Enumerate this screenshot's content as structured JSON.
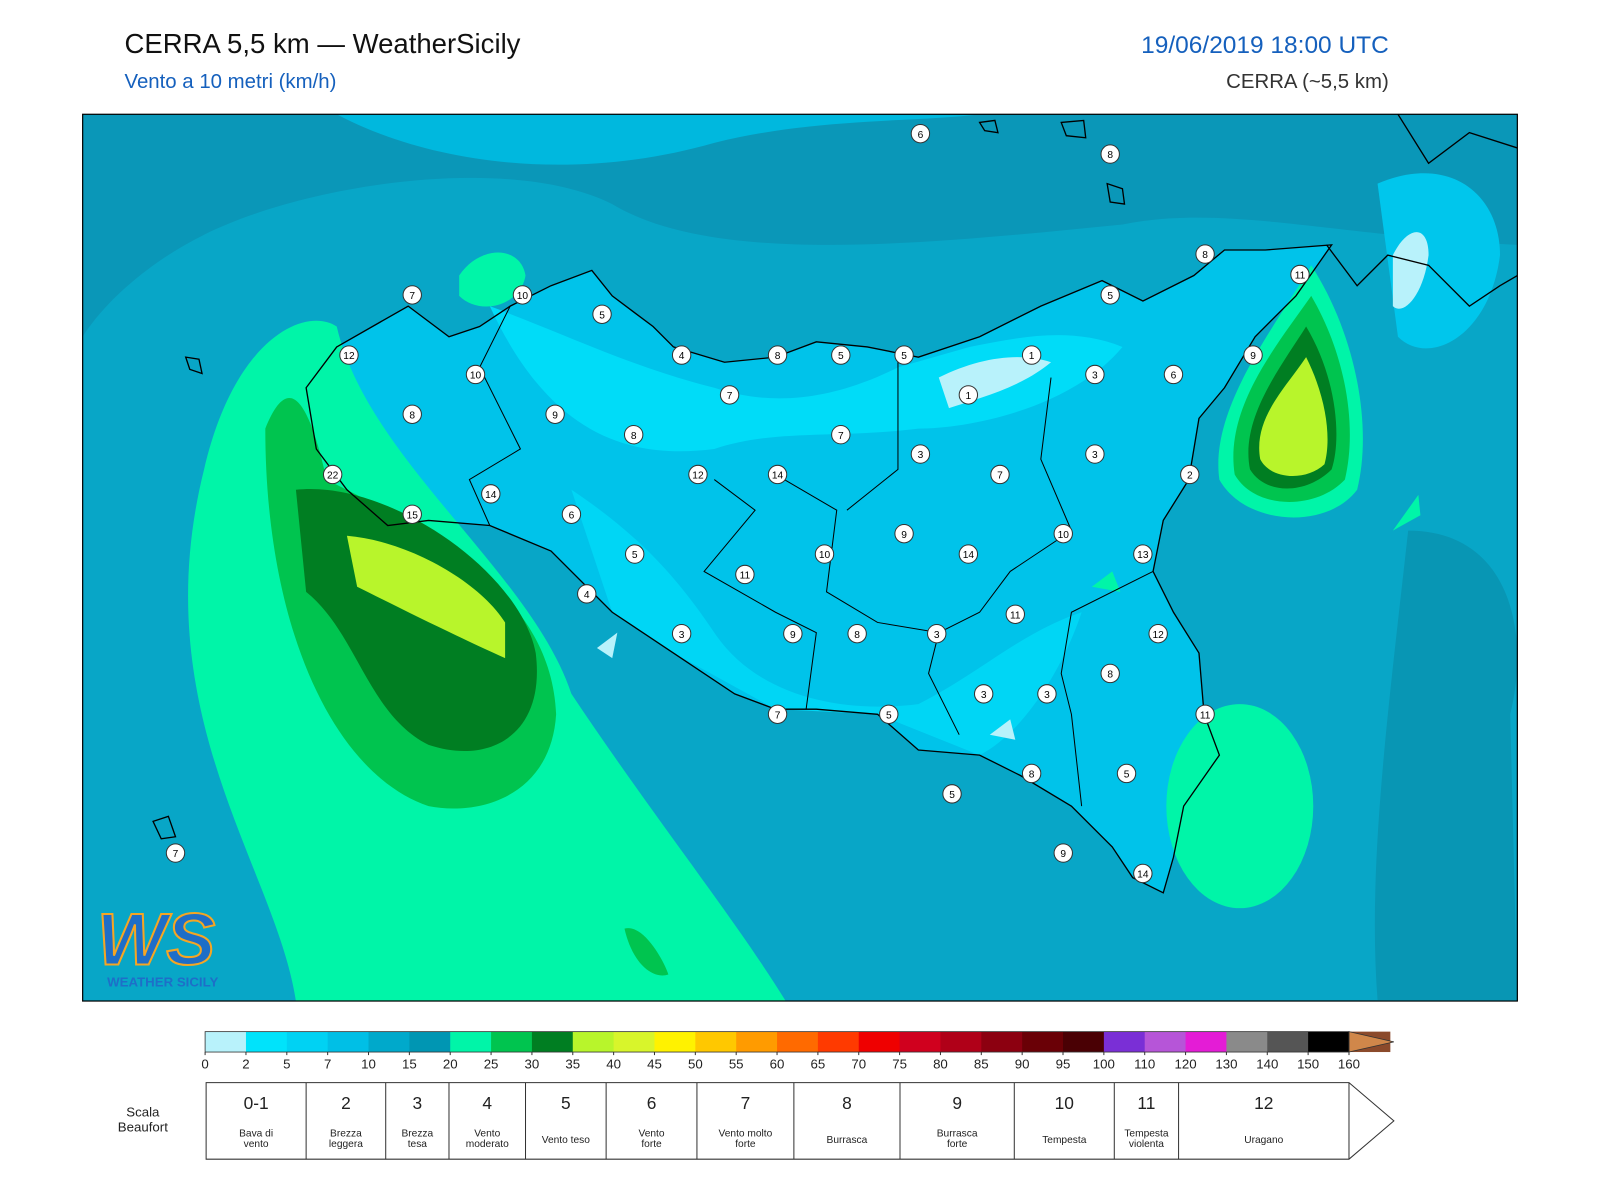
{
  "header": {
    "title": "CERRA 5,5 km — WeatherSicily",
    "subtitle": "Vento a 10 metri (km/h)",
    "datetime": "19/06/2019 18:00 UTC",
    "model": "CERRA (~5,5 km)"
  },
  "logo": {
    "mark": "WS",
    "name": "WEATHER SICILY"
  },
  "map": {
    "stations": [
      6,
      8,
      8,
      11,
      7,
      10,
      5,
      5,
      12,
      4,
      8,
      5,
      5,
      1,
      9,
      10,
      3,
      6,
      7,
      1,
      8,
      9,
      8,
      7,
      3,
      3,
      12,
      14,
      7,
      2,
      22,
      14,
      6,
      15,
      9,
      10,
      5,
      10,
      14,
      13,
      11,
      4,
      11,
      3,
      9,
      8,
      3,
      12,
      8,
      3,
      3,
      7,
      5,
      11,
      8,
      5,
      5,
      7,
      9,
      14
    ]
  },
  "colorbar": {
    "ticks": [
      0,
      2,
      5,
      7,
      10,
      15,
      20,
      25,
      30,
      35,
      40,
      45,
      50,
      55,
      60,
      65,
      70,
      75,
      80,
      85,
      90,
      95,
      100,
      110,
      120,
      130,
      140,
      150,
      160
    ],
    "colors": [
      "#b8f2fb",
      "#00e3fb",
      "#00d2f3",
      "#00bfe6",
      "#00a9cb",
      "#0096b3",
      "#00f5a8",
      "#00c44f",
      "#007e22",
      "#b8f52b",
      "#d8f52b",
      "#fff200",
      "#ffc800",
      "#ff9b00",
      "#ff6a00",
      "#ff3a00",
      "#ef0000",
      "#d0001e",
      "#b00018",
      "#8c0010",
      "#6a0006",
      "#4a0004",
      "#7a2fd6",
      "#b655d8",
      "#e41cd6",
      "#8a8a8a",
      "#555555",
      "#000000",
      "#8b4a2b"
    ],
    "extend_color": "#d0874a"
  },
  "beaufort": {
    "label": [
      "Scala",
      "Beaufort"
    ],
    "levels": [
      {
        "force": "0-1",
        "description": [
          "Bava di",
          "vento"
        ]
      },
      {
        "force": "2",
        "description": [
          "Brezza",
          "leggera"
        ]
      },
      {
        "force": "3",
        "description": [
          "Brezza",
          "tesa"
        ]
      },
      {
        "force": "4",
        "description": [
          "Vento",
          "moderato"
        ]
      },
      {
        "force": "5",
        "description": [
          "Vento teso"
        ]
      },
      {
        "force": "6",
        "description": [
          "Vento",
          "forte"
        ]
      },
      {
        "force": "7",
        "description": [
          "Vento molto",
          "forte"
        ]
      },
      {
        "force": "8",
        "description": [
          "Burrasca"
        ]
      },
      {
        "force": "9",
        "description": [
          "Burrasca",
          "forte"
        ]
      },
      {
        "force": "10",
        "description": [
          "Tempesta"
        ]
      },
      {
        "force": "11",
        "description": [
          "Tempesta",
          "violenta"
        ]
      },
      {
        "force": "12",
        "description": [
          "Uragano"
        ]
      }
    ]
  }
}
